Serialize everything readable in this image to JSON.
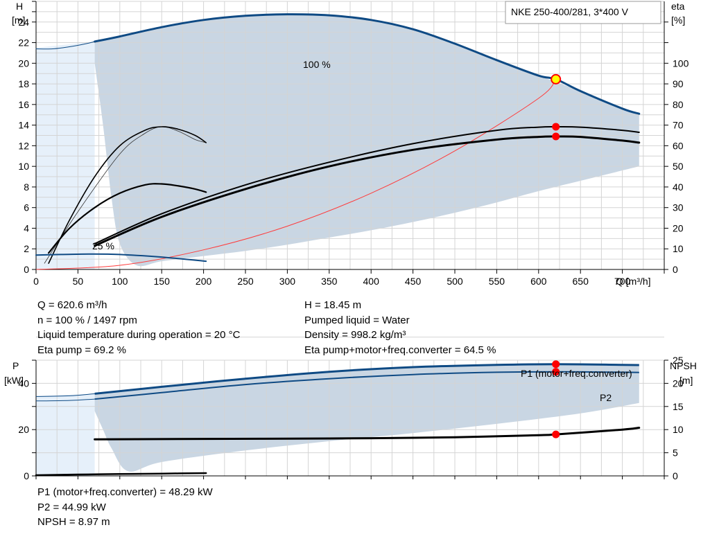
{
  "title_box": "NKE 250-400/281, 3*400 V",
  "colors": {
    "envelope": "#c9d6e3",
    "envelope_light": "#e6f0fa",
    "curve_blue": "#0e4a84",
    "duty_point": "#ff0000",
    "grid": "#d4d4d4"
  },
  "chart_data": [
    {
      "type": "line",
      "title": "",
      "xlabel": "Q [m³/h]",
      "ylabel": "H\n[m]",
      "y2label": "eta\n[%]",
      "xlim": [
        0,
        750
      ],
      "ylim": [
        0,
        26
      ],
      "y2lim": [
        0,
        130
      ],
      "xticks": [
        0,
        50,
        100,
        150,
        200,
        250,
        300,
        350,
        400,
        450,
        500,
        550,
        600,
        650,
        700
      ],
      "yticks": [
        0,
        2,
        4,
        6,
        8,
        10,
        12,
        14,
        16,
        18,
        20,
        22,
        24
      ],
      "y2ticks": [
        0,
        10,
        20,
        30,
        40,
        50,
        60,
        70,
        80,
        90,
        100
      ],
      "grid": true,
      "annotations": [
        "100 %",
        "25 %"
      ],
      "envelope_light": {
        "x": [
          0,
          70,
          70,
          0
        ],
        "y": [
          21.5,
          22.1,
          0,
          0
        ]
      },
      "envelope": {
        "upper": {
          "x": [
            70,
            150,
            200,
            250,
            300,
            350,
            400,
            450,
            500,
            550,
            600,
            650,
            700,
            720
          ],
          "y": [
            22.1,
            23.5,
            24.2,
            24.6,
            24.75,
            24.65,
            24.2,
            23.3,
            21.9,
            20.3,
            18.8,
            17.3,
            15.6,
            15.1
          ]
        },
        "lower": {
          "x": [
            720,
            650,
            600,
            550,
            500,
            450,
            400,
            350,
            300,
            250,
            200,
            150,
            120,
            100,
            90,
            80,
            70
          ],
          "y": [
            10.0,
            8.6,
            7.6,
            6.5,
            5.5,
            4.6,
            3.8,
            3.1,
            2.4,
            1.8,
            1.3,
            0.8,
            0.4,
            2.5,
            7,
            14,
            20
          ]
        }
      },
      "series": [
        {
          "curve": "head-100",
          "x": [
            0,
            20,
            40,
            60,
            70,
            100,
            150,
            200,
            250,
            300,
            350,
            400,
            450,
            500,
            550,
            600,
            620.6,
            650,
            700,
            720
          ],
          "y": [
            21.4,
            21.4,
            21.6,
            21.9,
            22.1,
            22.6,
            23.5,
            24.2,
            24.6,
            24.75,
            24.65,
            24.2,
            23.3,
            21.9,
            20.3,
            18.8,
            18.45,
            17.3,
            15.6,
            15.1
          ]
        },
        {
          "curve": "eta-pump",
          "axis": "y2",
          "x": [
            70,
            150,
            250,
            350,
            450,
            550,
            600,
            620.6,
            650,
            700,
            720
          ],
          "y": [
            12.5,
            27,
            41,
            52,
            61,
            67.5,
            69,
            69.2,
            69,
            67.5,
            66.5
          ]
        },
        {
          "curve": "eta-total",
          "axis": "y2",
          "x": [
            70,
            150,
            250,
            350,
            450,
            550,
            600,
            620.6,
            650,
            700,
            720
          ],
          "y": [
            11.5,
            25.5,
            39,
            50,
            58,
            63,
            64.3,
            64.5,
            64.3,
            62.5,
            61.5
          ]
        },
        {
          "curve": "eta-pump-low",
          "axis": "y2",
          "x": [
            15,
            40,
            70,
            100,
            130,
            150,
            170,
            190,
            203
          ],
          "y": [
            3,
            24,
            45,
            60,
            67.5,
            69.2,
            68,
            65,
            61.5
          ]
        },
        {
          "curve": "eta-total-low",
          "axis": "y2",
          "x": [
            15,
            40,
            70,
            100,
            130,
            150,
            170,
            190,
            203
          ],
          "y": [
            8,
            20,
            30,
            37,
            41,
            41.5,
            40.5,
            39,
            37.5
          ]
        },
        {
          "curve": "head-low",
          "x": [
            0,
            30,
            70,
            100,
            150,
            203
          ],
          "y": [
            1.4,
            1.45,
            1.5,
            1.45,
            1.2,
            0.8
          ]
        },
        {
          "curve": "system-line",
          "x": [
            0,
            100,
            200,
            300,
            400,
            500,
            600,
            620.6
          ],
          "y": [
            0,
            0.4,
            1.9,
            4.2,
            7.4,
            11.5,
            16.6,
            18.45
          ]
        },
        {
          "curve": "eta-thin",
          "axis": "y2",
          "x": [
            10,
            50,
            100,
            130,
            150,
            170,
            190,
            203
          ],
          "y": [
            3,
            28,
            56,
            66,
            69.2,
            67,
            63,
            61.5
          ]
        }
      ],
      "duty_point": {
        "x": 620.6,
        "y": 18.45
      },
      "duty_markers": [
        {
          "x": 620.6,
          "y2": 69.2
        },
        {
          "x": 620.6,
          "y2": 64.5
        }
      ]
    },
    {
      "type": "line",
      "title": "",
      "xlabel": "",
      "ylabel": "P\n[kW]",
      "y2label": "NPSH\n[m]",
      "xlim": [
        0,
        750
      ],
      "ylim": [
        0,
        50
      ],
      "y2lim": [
        0,
        25
      ],
      "yticks": [
        0,
        20,
        40
      ],
      "y2ticks": [
        0,
        5,
        10,
        15,
        20,
        25
      ],
      "grid": true,
      "annotations": [
        "P1 (motor+freq.converter)",
        "P2"
      ],
      "envelope_light": {
        "x": [
          0,
          70,
          70,
          0
        ],
        "y": [
          34.5,
          35.5,
          0,
          0
        ]
      },
      "envelope": {
        "upper": {
          "x": [
            70,
            150,
            250,
            350,
            450,
            550,
            620.6,
            700,
            720
          ],
          "y": [
            35.5,
            38.5,
            42,
            45,
            47,
            48,
            48.29,
            48,
            47.9
          ]
        },
        "lower": {
          "x": [
            720,
            650,
            550,
            450,
            350,
            250,
            150,
            110,
            90,
            80,
            70
          ],
          "y": [
            31.5,
            27,
            22.5,
            18.5,
            15,
            11,
            6,
            2,
            12,
            20,
            28
          ]
        }
      },
      "series": [
        {
          "curve": "p1",
          "x": [
            0,
            40,
            70,
            150,
            250,
            350,
            450,
            550,
            620.6,
            700,
            720
          ],
          "y": [
            34.3,
            34.6,
            35.5,
            38.5,
            42,
            45,
            47,
            48,
            48.29,
            48,
            47.9
          ]
        },
        {
          "curve": "p2",
          "x": [
            0,
            40,
            70,
            150,
            250,
            350,
            450,
            550,
            620.6,
            700,
            720
          ],
          "y": [
            32.4,
            32.6,
            33.2,
            36,
            39.5,
            42,
            43.8,
            44.8,
            44.99,
            44.8,
            44.7
          ]
        },
        {
          "curve": "npsh",
          "axis": "y2",
          "x": [
            70,
            200,
            300,
            400,
            500,
            600,
            620.6,
            700,
            720
          ],
          "y2": [
            7.9,
            8.0,
            8.05,
            8.15,
            8.35,
            8.8,
            8.97,
            10.0,
            10.4
          ]
        },
        {
          "curve": "p-low",
          "x": [
            0,
            50,
            100,
            150,
            203
          ],
          "y": [
            0.3,
            0.6,
            0.8,
            1.0,
            1.2
          ]
        }
      ],
      "duty_markers": [
        {
          "x": 620.6,
          "y": 48.29
        },
        {
          "x": 620.6,
          "y": 44.99
        },
        {
          "x": 620.6,
          "y2": 8.97
        }
      ]
    }
  ],
  "info": {
    "left": [
      "Q = 620.6 m³/h",
      "n = 100 % / 1497 rpm",
      "Liquid temperature during operation = 20 °C",
      "Eta pump = 69.2 %"
    ],
    "right": [
      "H = 18.45 m",
      "Pumped liquid = Water",
      "Density = 998.2 kg/m³",
      "Eta pump+motor+freq.converter = 64.5 %"
    ],
    "bottom": [
      "P1 (motor+freq.converter) = 48.29 kW",
      "P2 = 44.99 kW",
      "NPSH = 8.97 m"
    ]
  }
}
